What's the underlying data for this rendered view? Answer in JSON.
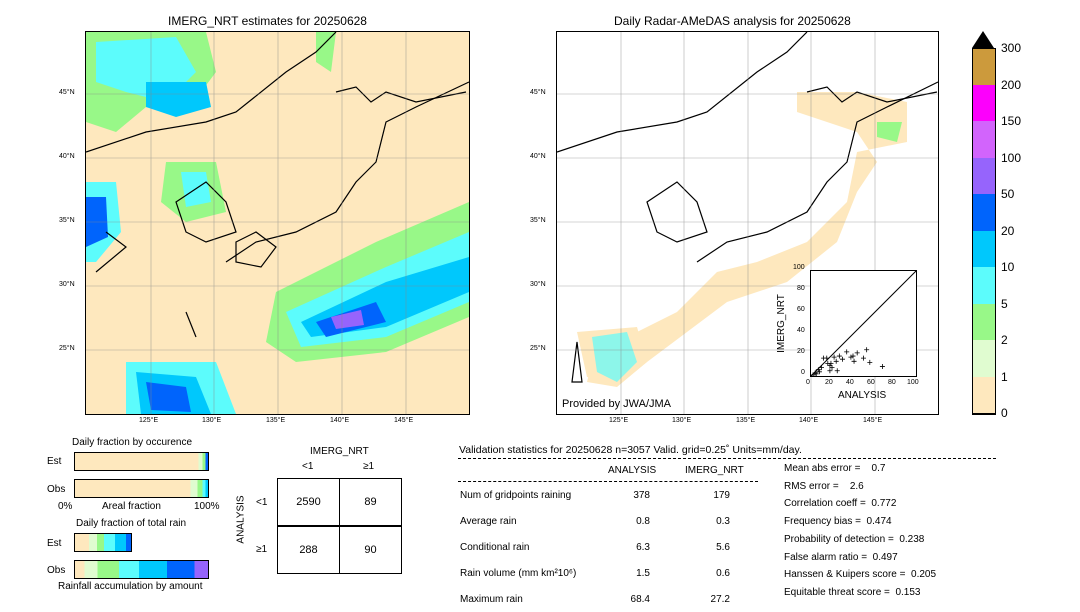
{
  "left_map": {
    "title": "IMERG_NRT estimates for 20250628"
  },
  "right_map": {
    "title": "Daily Radar-AMeDAS analysis for 20250628",
    "credit": "Provided by JWA/JMA"
  },
  "lon_ticks": [
    "125°E",
    "130°E",
    "135°E",
    "140°E",
    "145°E"
  ],
  "lat_ticks": [
    "45°N",
    "40°N",
    "35°N",
    "30°N",
    "25°N"
  ],
  "colorbar": {
    "labels": [
      "300",
      "200",
      "150",
      "100",
      "50",
      "20",
      "10",
      "5",
      "2",
      "1",
      "0"
    ],
    "colors": [
      "#cc9a3c",
      "#fc00fc",
      "#d264fc",
      "#9664fc",
      "#0064fc",
      "#00c8fc",
      "#5cfcfc",
      "#98f888",
      "#e0fcd0",
      "#fee8be"
    ]
  },
  "occurrence": {
    "title": "Daily fraction by occurence",
    "est": "Est",
    "obs": "Obs",
    "x0": "0%",
    "xlabel": "Areal fraction",
    "x1": "100%"
  },
  "total_rain": {
    "title": "Daily fraction of total rain",
    "est": "Est",
    "obs": "Obs",
    "xlabel": "Rainfall accumulation by amount"
  },
  "contingency": {
    "col_title": "IMERG_NRT",
    "row_title": "ANALYSIS",
    "lt1": "<1",
    "ge1": "≥1",
    "cells": [
      "2590",
      "89",
      "288",
      "90"
    ]
  },
  "stats": {
    "header": "Validation statistics for 20250628  n=3057 Valid. grid=0.25˚ Units=mm/day.",
    "col1": "ANALYSIS",
    "col2": "IMERG_NRT",
    "rows": [
      [
        "Num of gridpoints raining",
        "378",
        "179"
      ],
      [
        "Average rain",
        "0.8",
        "0.3"
      ],
      [
        "Conditional rain",
        "6.3",
        "5.6"
      ],
      [
        "Rain volume (mm km²10⁶)",
        "1.5",
        "0.6"
      ],
      [
        "Maximum rain",
        "68.4",
        "27.2"
      ]
    ],
    "scores": [
      "Mean abs error =    0.7",
      "RMS error =    2.6",
      "Correlation coeff =  0.772",
      "Frequency bias =  0.474",
      "Probability of detection =  0.238",
      "False alarm ratio =  0.497",
      "Hanssen & Kuipers score =  0.205",
      "Equitable threat score =  0.153"
    ]
  },
  "chart_data": {
    "type": "scatter",
    "xlabel": "ANALYSIS",
    "ylabel": "IMERG_NRT",
    "xlim": [
      0,
      100
    ],
    "ylim": [
      0,
      100
    ],
    "ticks": [
      "0",
      "20",
      "40",
      "60",
      "80",
      "100"
    ],
    "x": [
      2,
      4,
      5,
      7,
      8,
      10,
      12,
      15,
      16,
      18,
      18,
      19,
      20,
      22,
      24,
      25,
      27,
      30,
      34,
      38,
      40,
      41,
      44,
      50,
      53,
      56,
      68
    ],
    "y": [
      1,
      3,
      2,
      6,
      4,
      8,
      17,
      17,
      12,
      10,
      5,
      12,
      8,
      18,
      14,
      5,
      19,
      16,
      23,
      18,
      19,
      14,
      22,
      17,
      25,
      13,
      9
    ]
  }
}
